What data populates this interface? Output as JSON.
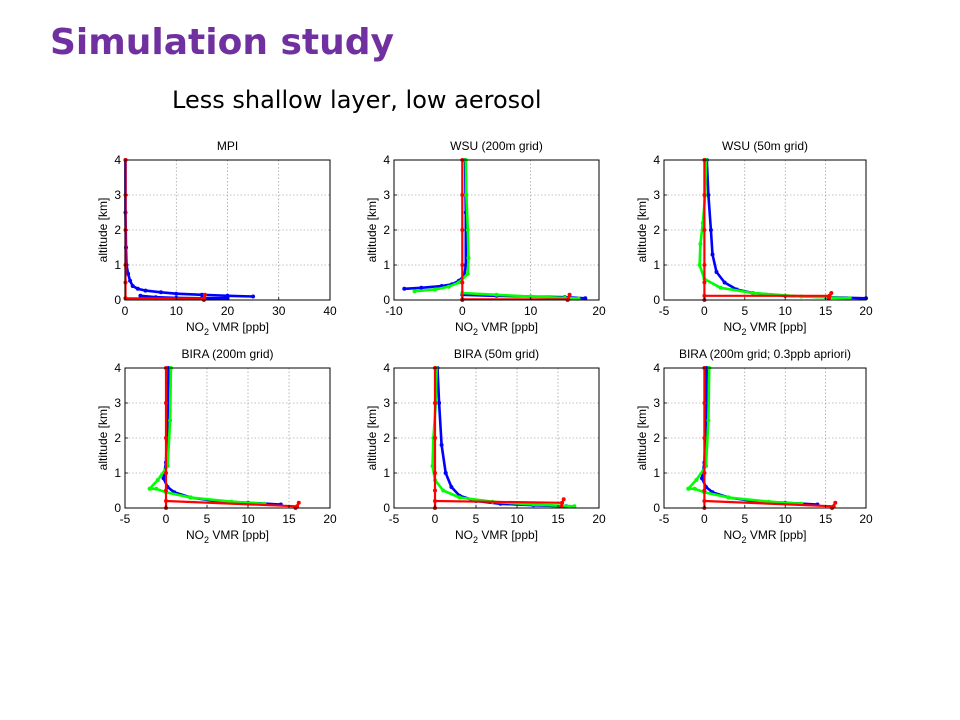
{
  "slide": {
    "title": "Simulation study",
    "subtitle": "Less shallow layer, low aerosol"
  },
  "colors": {
    "title": "#7030a0",
    "series_blue": "#0000ff",
    "series_green": "#00ff00",
    "series_red": "#ff0000"
  },
  "chart_data": [
    {
      "type": "line",
      "title": "MPI",
      "xlabel": "NO2 VMR [ppb]",
      "ylabel": "altitude [km]",
      "xlim": [
        0,
        40
      ],
      "ylim": [
        0,
        4
      ],
      "xticks": [
        0,
        10,
        20,
        30,
        40
      ],
      "yticks": [
        0,
        1,
        2,
        3,
        4
      ],
      "grid": true,
      "series": [
        {
          "color": "blue",
          "x": [
            25,
            20,
            15,
            10,
            7,
            4,
            2.5,
            1.5,
            1,
            0.6,
            0.3,
            0.2,
            0.1,
            0.1
          ],
          "y": [
            0.1,
            0.12,
            0.15,
            0.18,
            0.22,
            0.27,
            0.32,
            0.4,
            0.55,
            0.75,
            1.0,
            1.5,
            2.5,
            4.0
          ]
        },
        {
          "color": "blue",
          "x": [
            20,
            15,
            10,
            6,
            3
          ],
          "y": [
            0.05,
            0.05,
            0.06,
            0.08,
            0.12
          ]
        },
        {
          "color": "red",
          "x": [
            0.1,
            0.1,
            0.1,
            0.1,
            0.1,
            0.1
          ],
          "y": [
            0.05,
            0.5,
            1,
            2,
            3,
            4
          ]
        },
        {
          "color": "red",
          "x": [
            0.1,
            15.5
          ],
          "y": [
            0.05,
            0.05
          ]
        },
        {
          "color": "red",
          "x": [
            15.4,
            15.6
          ],
          "y": [
            0.0,
            0.15
          ]
        }
      ]
    },
    {
      "type": "line",
      "title": "WSU (200m grid)",
      "xlabel": "NO2 VMR [ppb]",
      "ylabel": "altitude [km]",
      "xlim": [
        -10,
        20
      ],
      "ylim": [
        0,
        4
      ],
      "xticks": [
        -10,
        0,
        10,
        20
      ],
      "yticks": [
        0,
        1,
        2,
        3,
        4
      ],
      "grid": true,
      "series": [
        {
          "color": "blue",
          "x": [
            -8.5,
            -6,
            -3,
            -1.5,
            -0.5,
            0.3,
            0.5,
            0.5,
            0.4
          ],
          "y": [
            0.32,
            0.35,
            0.4,
            0.45,
            0.55,
            0.7,
            1.0,
            2.5,
            4.0
          ]
        },
        {
          "color": "green",
          "x": [
            -7,
            -4,
            -2,
            -0.5,
            0.8,
            0.9,
            0.8,
            0.6,
            0.5
          ],
          "y": [
            0.25,
            0.3,
            0.38,
            0.5,
            0.75,
            1.2,
            2.0,
            3.0,
            4.0
          ]
        },
        {
          "color": "blue",
          "x": [
            0,
            5,
            10,
            15,
            18
          ],
          "y": [
            0.15,
            0.12,
            0.1,
            0.08,
            0.05
          ]
        },
        {
          "color": "green",
          "x": [
            0,
            5,
            10,
            15,
            17
          ],
          "y": [
            0.2,
            0.15,
            0.1,
            0.06,
            0.04
          ]
        },
        {
          "color": "red",
          "x": [
            0,
            0,
            0,
            0,
            0,
            0
          ],
          "y": [
            0.0,
            0.5,
            1,
            2,
            3,
            4
          ]
        },
        {
          "color": "red",
          "x": [
            0,
            15.5
          ],
          "y": [
            0.02,
            0.02
          ]
        },
        {
          "color": "red",
          "x": [
            15.4,
            15.7
          ],
          "y": [
            0.0,
            0.15
          ]
        }
      ]
    },
    {
      "type": "line",
      "title": "WSU (50m grid)",
      "xlabel": "NO2 VMR [ppb]",
      "ylabel": "altitude [km]",
      "xlim": [
        -5,
        20
      ],
      "ylim": [
        0,
        4
      ],
      "xticks": [
        -5,
        0,
        5,
        10,
        15,
        20
      ],
      "yticks": [
        0,
        1,
        2,
        3,
        4
      ],
      "grid": true,
      "series": [
        {
          "color": "blue",
          "x": [
            20,
            15,
            10,
            6,
            4,
            2.5,
            1.5,
            1.0,
            0.8,
            0.5,
            0.3
          ],
          "y": [
            0.05,
            0.08,
            0.12,
            0.2,
            0.3,
            0.5,
            0.8,
            1.3,
            2.0,
            3.0,
            4.0
          ]
        },
        {
          "color": "green",
          "x": [
            18,
            12,
            6,
            2,
            0,
            -0.6,
            -0.5,
            -0.2,
            0.1,
            0.2
          ],
          "y": [
            0.05,
            0.1,
            0.2,
            0.35,
            0.6,
            1.0,
            1.6,
            2.2,
            3.0,
            4.0
          ]
        },
        {
          "color": "red",
          "x": [
            0,
            0,
            0,
            0,
            0,
            0
          ],
          "y": [
            0.0,
            0.5,
            1,
            2,
            3,
            4
          ]
        },
        {
          "color": "red",
          "x": [
            0,
            15.5
          ],
          "y": [
            0.12,
            0.12
          ]
        },
        {
          "color": "red",
          "x": [
            15.4,
            15.7
          ],
          "y": [
            0.05,
            0.2
          ]
        }
      ]
    },
    {
      "type": "line",
      "title": "BIRA (200m grid)",
      "xlabel": "NO2 VMR [ppb]",
      "ylabel": "altitude [km]",
      "xlim": [
        -5,
        20
      ],
      "ylim": [
        0,
        4
      ],
      "xticks": [
        -5,
        0,
        5,
        10,
        15,
        20
      ],
      "yticks": [
        0,
        1,
        2,
        3,
        4
      ],
      "grid": true,
      "series": [
        {
          "color": "blue",
          "x": [
            14,
            10,
            6,
            3,
            1,
            0.2,
            -0.3,
            0,
            0.2,
            0.3
          ],
          "y": [
            0.1,
            0.15,
            0.2,
            0.3,
            0.45,
            0.6,
            0.85,
            1.3,
            2.5,
            4.0
          ]
        },
        {
          "color": "green",
          "x": [
            12,
            8,
            3,
            0,
            -1.2,
            -2.0,
            -1.0,
            0.2,
            0.5,
            0.6
          ],
          "y": [
            0.12,
            0.18,
            0.3,
            0.45,
            0.55,
            0.55,
            0.8,
            1.2,
            2.5,
            4.0
          ]
        },
        {
          "color": "red",
          "x": [
            0,
            0,
            0,
            0,
            0,
            0
          ],
          "y": [
            0.0,
            0.5,
            1,
            2,
            3,
            4
          ]
        },
        {
          "color": "red",
          "x": [
            0,
            16
          ],
          "y": [
            0.2,
            0.05
          ]
        },
        {
          "color": "red",
          "x": [
            15.8,
            16.2
          ],
          "y": [
            0.0,
            0.15
          ]
        }
      ]
    },
    {
      "type": "line",
      "title": "BIRA (50m grid)",
      "xlabel": "NO2 VMR [ppb]",
      "ylabel": "altitude [km]",
      "xlim": [
        -5,
        20
      ],
      "ylim": [
        0,
        4
      ],
      "xticks": [
        -5,
        0,
        5,
        10,
        15,
        20
      ],
      "yticks": [
        0,
        1,
        2,
        3,
        4
      ],
      "grid": true,
      "series": [
        {
          "color": "blue",
          "x": [
            16,
            12,
            8,
            5,
            3,
            2,
            1.3,
            0.8,
            0.5,
            0.3
          ],
          "y": [
            0.05,
            0.08,
            0.12,
            0.2,
            0.35,
            0.6,
            1.0,
            1.8,
            3.0,
            4.0
          ]
        },
        {
          "color": "green",
          "x": [
            17,
            12,
            7,
            3,
            1,
            0,
            -0.3,
            -0.2,
            0.1,
            0.2
          ],
          "y": [
            0.05,
            0.1,
            0.18,
            0.3,
            0.5,
            0.8,
            1.2,
            2.0,
            3.0,
            4.0
          ]
        },
        {
          "color": "red",
          "x": [
            0,
            0,
            0,
            0,
            0,
            0
          ],
          "y": [
            0.0,
            0.5,
            1,
            2,
            3,
            4
          ]
        },
        {
          "color": "red",
          "x": [
            0,
            15.5
          ],
          "y": [
            0.2,
            0.15
          ]
        },
        {
          "color": "red",
          "x": [
            15.4,
            15.7
          ],
          "y": [
            0.05,
            0.25
          ]
        }
      ]
    },
    {
      "type": "line",
      "title": "BIRA (200m grid; 0.3ppb apriori)",
      "xlabel": "NO2 VMR [ppb]",
      "ylabel": "altitude [km]",
      "xlim": [
        -5,
        20
      ],
      "ylim": [
        0,
        4
      ],
      "xticks": [
        -5,
        0,
        5,
        10,
        15,
        20
      ],
      "yticks": [
        0,
        1,
        2,
        3,
        4
      ],
      "grid": true,
      "series": [
        {
          "color": "blue",
          "x": [
            14,
            10,
            6,
            3,
            1,
            0.2,
            -0.3,
            0,
            0.2,
            0.3
          ],
          "y": [
            0.1,
            0.15,
            0.2,
            0.3,
            0.45,
            0.6,
            0.85,
            1.3,
            2.5,
            4.0
          ]
        },
        {
          "color": "green",
          "x": [
            12,
            8,
            3,
            0,
            -1.2,
            -2.0,
            -1.0,
            0.2,
            0.5,
            0.6
          ],
          "y": [
            0.12,
            0.18,
            0.3,
            0.45,
            0.55,
            0.55,
            0.8,
            1.2,
            2.5,
            4.0
          ]
        },
        {
          "color": "red",
          "x": [
            0,
            0,
            0,
            0,
            0,
            0
          ],
          "y": [
            0.0,
            0.5,
            1,
            2,
            3,
            4
          ]
        },
        {
          "color": "red",
          "x": [
            0,
            16
          ],
          "y": [
            0.2,
            0.05
          ]
        },
        {
          "color": "red",
          "x": [
            15.8,
            16.2
          ],
          "y": [
            0.0,
            0.15
          ]
        }
      ]
    }
  ]
}
